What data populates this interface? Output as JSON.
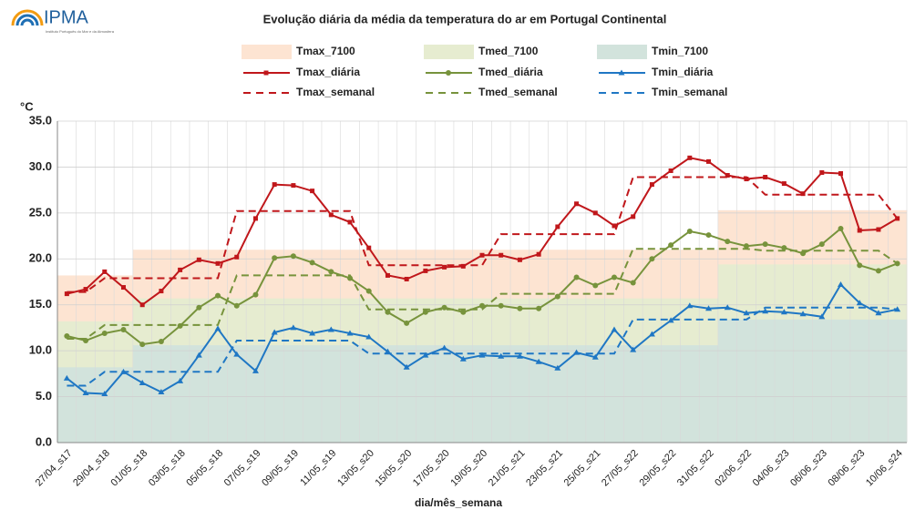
{
  "logo": {
    "name": "IPMA",
    "subtitle": "Instituto Português do Mar e da Atmosfera"
  },
  "chart_data": {
    "type": "line",
    "title": "Evolução diária da média da temperatura do ar em Portugal Continental",
    "y_unit": "°C",
    "x_label": "dia/mês_semana",
    "categories": [
      "27/04_s17",
      null,
      "29/04_s18",
      null,
      "01/05_s18",
      null,
      "03/05_s18",
      null,
      "05/05_s18",
      null,
      "07/05_s19",
      null,
      "09/05_s19",
      null,
      "11/05_s19",
      null,
      "13/05_s20",
      null,
      "15/05_s20",
      null,
      "17/05_s20",
      null,
      "19/05_s20",
      null,
      "21/05_s21",
      null,
      "23/05_s21",
      null,
      "25/05_s21",
      null,
      "27/05_s22",
      null,
      "29/05_s22",
      null,
      "31/05_s22",
      null,
      "02/06_s22",
      null,
      "04/06_s23",
      null,
      "06/06_s23",
      null,
      "08/06_s23",
      null,
      "10/06_s24"
    ],
    "ylim": [
      0,
      35
    ],
    "yticks": [
      {
        "value": 0,
        "label": "0.0"
      },
      {
        "value": 5,
        "label": "5.0"
      },
      {
        "value": 10,
        "label": "10.0"
      },
      {
        "value": 15,
        "label": "15.0"
      },
      {
        "value": 20,
        "label": "20.0"
      },
      {
        "value": 25,
        "label": "25.0"
      },
      {
        "value": 30,
        "label": "30.0"
      },
      {
        "value": 35,
        "label": "35.0"
      }
    ],
    "grid": true,
    "series": [
      {
        "name": "Tmax_7100",
        "color": "#fde4d2",
        "style": "area",
        "values": [
          18.2,
          18.2,
          18.2,
          18.2,
          21,
          21,
          21,
          21,
          21,
          21,
          21,
          21,
          21,
          21,
          21,
          21,
          21,
          21,
          21,
          21,
          21,
          21,
          21,
          21,
          21,
          21,
          21,
          21,
          21,
          21,
          21,
          21,
          21,
          21,
          21,
          25.3,
          25.3,
          25.3,
          25.3,
          25.3,
          25.3,
          25.3,
          25.3,
          25.3,
          25.3
        ]
      },
      {
        "name": "Tmed_7100",
        "color": "#e6ecd0",
        "style": "area",
        "values": [
          13.2,
          13.2,
          13.2,
          13.2,
          15.7,
          15.7,
          15.7,
          15.7,
          15.7,
          15.7,
          15.7,
          15.7,
          15.7,
          15.7,
          15.7,
          15.7,
          15.7,
          15.7,
          15.7,
          15.7,
          15.7,
          15.7,
          15.7,
          15.7,
          15.7,
          15.7,
          15.7,
          15.7,
          15.7,
          15.7,
          15.7,
          15.7,
          15.7,
          15.7,
          15.7,
          19.4,
          19.4,
          19.4,
          19.4,
          19.4,
          19.4,
          19.4,
          19.4,
          19.4,
          19.4
        ]
      },
      {
        "name": "Tmin_7100",
        "color": "#d2e3dc",
        "style": "area",
        "values": [
          8.2,
          8.2,
          8.2,
          8.2,
          10.6,
          10.6,
          10.6,
          10.6,
          10.6,
          10.6,
          10.6,
          10.6,
          10.6,
          10.6,
          10.6,
          10.6,
          10.6,
          10.6,
          10.6,
          10.6,
          10.6,
          10.6,
          10.6,
          10.6,
          10.6,
          10.6,
          10.6,
          10.6,
          10.6,
          10.6,
          10.6,
          10.6,
          10.6,
          10.6,
          10.6,
          13.4,
          13.4,
          13.4,
          13.4,
          13.4,
          13.4,
          13.4,
          13.4,
          13.4,
          13.4
        ]
      },
      {
        "name": "Tmax_diária",
        "color": "#c0171b",
        "style": "marker-line",
        "marker": "square",
        "values": [
          16.2,
          16.7,
          18.6,
          16.9,
          15.0,
          16.5,
          18.8,
          19.9,
          19.5,
          20.2,
          24.4,
          28.1,
          28.0,
          27.4,
          24.8,
          24.0,
          21.2,
          18.2,
          17.8,
          18.7,
          19.1,
          19.2,
          20.4,
          20.4,
          19.9,
          20.5,
          23.5,
          26.0,
          25.0,
          23.6,
          24.6,
          28.1,
          29.6,
          31.0,
          30.6,
          29.1,
          28.7,
          28.9,
          28.2,
          27.1,
          29.4,
          29.3,
          23.1,
          23.2,
          24.4
        ]
      },
      {
        "name": "Tmed_diária",
        "color": "#77933c",
        "style": "marker-line",
        "marker": "circle",
        "values": [
          11.6,
          11.1,
          11.9,
          12.3,
          10.7,
          11.0,
          12.7,
          14.7,
          16.0,
          14.9,
          16.1,
          20.1,
          20.3,
          19.6,
          18.6,
          17.9,
          16.5,
          14.2,
          13.0,
          14.2,
          14.7,
          14.2,
          14.9,
          14.9,
          14.6,
          14.6,
          15.9,
          18.0,
          17.1,
          18.0,
          17.4,
          20.0,
          21.5,
          23.0,
          22.6,
          21.9,
          21.4,
          21.6,
          21.2,
          20.6,
          21.6,
          23.3,
          19.3,
          18.7,
          19.5
        ]
      },
      {
        "name": "Tmin_diária",
        "color": "#1f77c4",
        "style": "marker-line",
        "marker": "triangle",
        "values": [
          7.0,
          5.4,
          5.3,
          7.7,
          6.5,
          5.5,
          6.7,
          9.5,
          12.4,
          9.6,
          7.8,
          12.0,
          12.5,
          11.9,
          12.3,
          11.9,
          11.5,
          9.9,
          8.2,
          9.5,
          10.3,
          9.1,
          9.5,
          9.4,
          9.4,
          8.8,
          8.1,
          9.8,
          9.3,
          12.3,
          10.1,
          11.8,
          13.3,
          14.9,
          14.6,
          14.7,
          14.1,
          14.3,
          14.2,
          14.0,
          13.7,
          17.2,
          15.2,
          14.1,
          14.5
        ]
      },
      {
        "name": "Tmax_semanal",
        "color": "#c0171b",
        "style": "dashed",
        "values": [
          16.4,
          16.4,
          17.9,
          17.9,
          17.9,
          17.9,
          17.9,
          17.9,
          17.9,
          25.2,
          25.2,
          25.2,
          25.2,
          25.2,
          25.2,
          25.2,
          19.3,
          19.3,
          19.3,
          19.3,
          19.3,
          19.3,
          19.3,
          22.7,
          22.7,
          22.7,
          22.7,
          22.7,
          22.7,
          22.7,
          28.9,
          28.9,
          28.9,
          28.9,
          28.9,
          28.9,
          28.9,
          27.0,
          27.0,
          27.0,
          27.0,
          27.0,
          27.0,
          27.0,
          24.4
        ]
      },
      {
        "name": "Tmed_semanal",
        "color": "#77933c",
        "style": "dashed",
        "values": [
          11.3,
          11.3,
          12.8,
          12.8,
          12.8,
          12.8,
          12.8,
          12.8,
          12.8,
          18.2,
          18.2,
          18.2,
          18.2,
          18.2,
          18.2,
          18.2,
          14.5,
          14.5,
          14.5,
          14.5,
          14.5,
          14.5,
          14.5,
          16.2,
          16.2,
          16.2,
          16.2,
          16.2,
          16.2,
          16.2,
          21.1,
          21.1,
          21.1,
          21.1,
          21.1,
          21.1,
          21.1,
          20.9,
          20.9,
          20.9,
          20.9,
          20.9,
          20.9,
          20.9,
          19.5
        ]
      },
      {
        "name": "Tmin_semanal",
        "color": "#1f77c4",
        "style": "dashed",
        "values": [
          6.2,
          6.2,
          7.7,
          7.7,
          7.7,
          7.7,
          7.7,
          7.7,
          7.7,
          11.1,
          11.1,
          11.1,
          11.1,
          11.1,
          11.1,
          11.1,
          9.7,
          9.7,
          9.7,
          9.7,
          9.7,
          9.7,
          9.7,
          9.7,
          9.7,
          9.7,
          9.7,
          9.7,
          9.7,
          9.7,
          13.4,
          13.4,
          13.4,
          13.4,
          13.4,
          13.4,
          13.4,
          14.7,
          14.7,
          14.7,
          14.7,
          14.7,
          14.7,
          14.7,
          14.5
        ]
      }
    ]
  }
}
